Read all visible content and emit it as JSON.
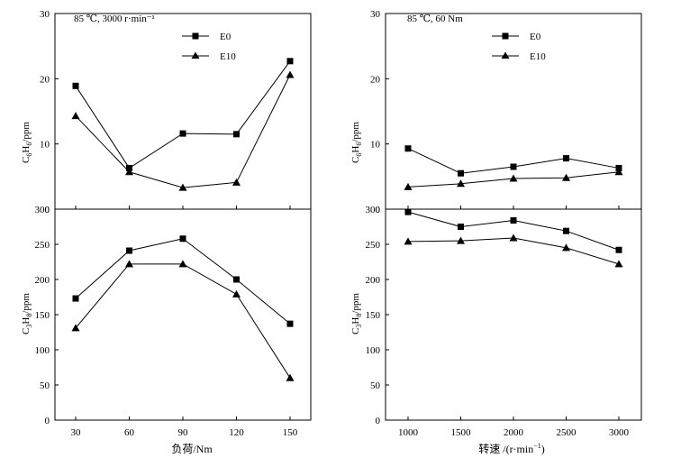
{
  "figure": {
    "annotations": {
      "left": "85 ℃, 3000 r·min⁻¹",
      "right": "85 ℃, 60 Nm"
    },
    "legend": {
      "e0": "E0",
      "e10": "E10"
    },
    "xlabels": {
      "left": "负荷/Nm",
      "right_main": "转速 /(r·min",
      "right_sup": "−1",
      "right_close": ")"
    },
    "ylabels": {
      "c6": {
        "base1": "C",
        "sub1": "6",
        "base2": "H",
        "sub2": "6",
        "unit": "/ppm"
      },
      "c3": {
        "base1": "C",
        "sub1": "3",
        "base2": "H",
        "sub2": "8",
        "unit": "/ppm"
      }
    }
  },
  "chart_data": [
    {
      "type": "line",
      "panel": "top-left",
      "title": "85 ℃, 3000 r·min⁻¹",
      "xlabel": "",
      "ylabel": "C6H6/ppm",
      "x": [
        30,
        60,
        90,
        120,
        150
      ],
      "xticks": [
        "30",
        "60",
        "90",
        "120",
        "150"
      ],
      "ylim": [
        0,
        30
      ],
      "yticks": [
        0,
        10,
        20,
        30
      ],
      "series": [
        {
          "name": "E0",
          "marker": "square",
          "values": [
            18.9,
            6.3,
            11.6,
            11.5,
            22.7
          ]
        },
        {
          "name": "E10",
          "marker": "triangle",
          "values": [
            14.3,
            5.7,
            3.3,
            4.1,
            20.6
          ]
        }
      ],
      "legend_position": "top-center"
    },
    {
      "type": "line",
      "panel": "bottom-left",
      "title": "",
      "xlabel": "负荷/Nm",
      "ylabel": "C3H8/ppm",
      "x": [
        30,
        60,
        90,
        120,
        150
      ],
      "xticks": [
        "30",
        "60",
        "90",
        "120",
        "150"
      ],
      "ylim": [
        0,
        300
      ],
      "yticks": [
        0,
        50,
        100,
        150,
        200,
        250,
        300
      ],
      "series": [
        {
          "name": "E0",
          "marker": "square",
          "values": [
            173,
            241,
            258,
            200,
            137
          ]
        },
        {
          "name": "E10",
          "marker": "triangle",
          "values": [
            131,
            222,
            222,
            179,
            60
          ]
        }
      ]
    },
    {
      "type": "line",
      "panel": "top-right",
      "title": "85 ℃, 60 Nm",
      "xlabel": "",
      "ylabel": "C6H6/ppm",
      "x": [
        1000,
        1500,
        2000,
        2500,
        3000
      ],
      "xticks": [
        "1000",
        "1500",
        "2000",
        "2500",
        "3000"
      ],
      "ylim": [
        0,
        30
      ],
      "yticks": [
        0,
        10,
        20,
        30
      ],
      "series": [
        {
          "name": "E0",
          "marker": "square",
          "values": [
            9.3,
            5.5,
            6.5,
            7.8,
            6.3
          ]
        },
        {
          "name": "E10",
          "marker": "triangle",
          "values": [
            3.4,
            3.9,
            4.7,
            4.8,
            5.7
          ]
        }
      ],
      "legend_position": "top-center"
    },
    {
      "type": "line",
      "panel": "bottom-right",
      "title": "",
      "xlabel": "转速 /(r·min−1)",
      "ylabel": "C3H8/ppm",
      "x": [
        1000,
        1500,
        2000,
        2500,
        3000
      ],
      "xticks": [
        "1000",
        "1500",
        "2000",
        "2500",
        "3000"
      ],
      "ylim": [
        0,
        300
      ],
      "yticks": [
        0,
        50,
        100,
        150,
        200,
        250,
        300
      ],
      "series": [
        {
          "name": "E0",
          "marker": "square",
          "values": [
            296,
            275,
            284,
            269,
            242
          ]
        },
        {
          "name": "E10",
          "marker": "triangle",
          "values": [
            254,
            255,
            259,
            245,
            222
          ]
        }
      ]
    }
  ]
}
